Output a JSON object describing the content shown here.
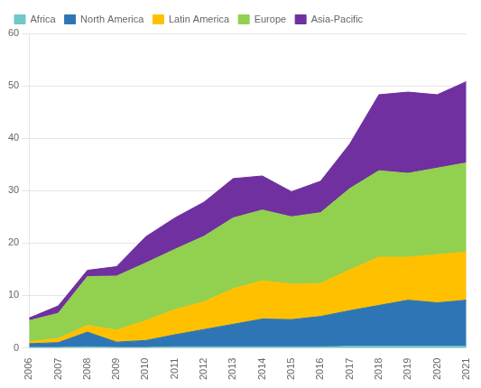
{
  "chart_data": {
    "type": "area",
    "stacked": true,
    "x": [
      2006,
      2007,
      2008,
      2009,
      2010,
      2011,
      2012,
      2013,
      2014,
      2015,
      2016,
      2017,
      2018,
      2019,
      2020,
      2021
    ],
    "series": [
      {
        "name": "Africa",
        "color": "#70c8c8",
        "values": [
          0.1,
          0.1,
          0.2,
          0.1,
          0.1,
          0.2,
          0.2,
          0.2,
          0.2,
          0.2,
          0.2,
          0.3,
          0.3,
          0.3,
          0.3,
          0.3
        ]
      },
      {
        "name": "North America",
        "color": "#2e75b6",
        "values": [
          0.7,
          0.9,
          2.8,
          1.0,
          1.3,
          2.3,
          3.3,
          4.3,
          5.3,
          5.2,
          5.8,
          6.8,
          7.8,
          8.8,
          8.3,
          8.8
        ]
      },
      {
        "name": "Latin America",
        "color": "#ffc000",
        "values": [
          0.4,
          0.8,
          1.3,
          2.3,
          3.8,
          4.8,
          5.3,
          6.8,
          7.3,
          6.8,
          6.3,
          7.8,
          9.2,
          8.2,
          9.2,
          9.2
        ]
      },
      {
        "name": "Europe",
        "color": "#92d050",
        "values": [
          4.0,
          4.8,
          9.3,
          10.3,
          11.0,
          11.5,
          12.5,
          13.5,
          13.5,
          12.8,
          13.5,
          15.5,
          16.5,
          16.0,
          16.5,
          17.0
        ]
      },
      {
        "name": "Asia-Pacific",
        "color": "#7030a0",
        "values": [
          0.5,
          1.4,
          1.2,
          1.8,
          5.0,
          6.0,
          6.5,
          7.5,
          6.5,
          4.8,
          6.0,
          8.5,
          14.5,
          15.5,
          14.0,
          15.5
        ]
      }
    ],
    "xlim": [
      2006,
      2021
    ],
    "xticks": [
      2006,
      2007,
      2008,
      2009,
      2010,
      2011,
      2012,
      2013,
      2014,
      2015,
      2016,
      2017,
      2018,
      2019,
      2020,
      2021
    ],
    "ylim": [
      0,
      60
    ],
    "yticks": [
      0,
      10,
      20,
      30,
      40,
      50,
      60
    ],
    "grid": "y",
    "legend": "upper left"
  }
}
